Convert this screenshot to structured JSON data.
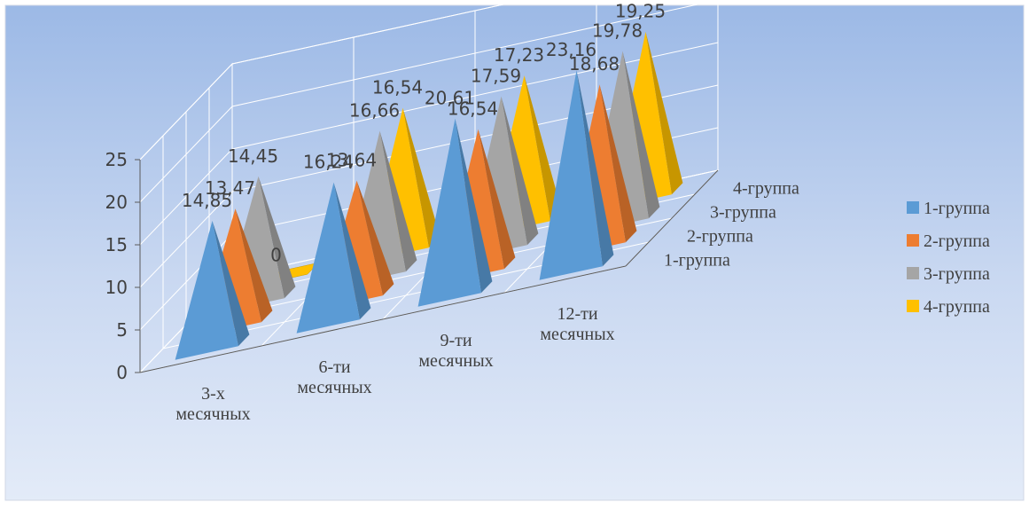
{
  "chart_data": {
    "type": "bar",
    "style": "3d-pyramid",
    "categories": [
      "3-х\nмесячных",
      "6-ти\nмесячных",
      "9-ти\nмесячных",
      "12-ти\nмесячных"
    ],
    "depth_labels": [
      "1-группа",
      "2-группа",
      "3-группа",
      "4-группа"
    ],
    "series": [
      {
        "name": "1-группа",
        "color": "#5B9BD5",
        "values": [
          14.85,
          16.24,
          20.61,
          23.16
        ]
      },
      {
        "name": "2-группа",
        "color": "#ED7D31",
        "values": [
          13.47,
          13.64,
          16.54,
          18.68
        ]
      },
      {
        "name": "3-группа",
        "color": "#A5A5A5",
        "values": [
          14.45,
          16.66,
          17.59,
          19.78
        ]
      },
      {
        "name": "4-группа",
        "color": "#FFC000",
        "values": [
          0,
          16.54,
          17.23,
          19.25
        ]
      }
    ],
    "ylim": [
      0,
      25
    ],
    "yticks": [
      "0",
      "5",
      "10",
      "15",
      "20",
      "25"
    ],
    "value_labels": {
      "s0": [
        "14,85",
        "16,24",
        "20,61",
        "23,16"
      ],
      "s1": [
        "13,47",
        "13,64",
        "16,54",
        "18,68"
      ],
      "s2": [
        "14,45",
        "16,66",
        "17,59",
        "19,78"
      ],
      "s3": [
        "0",
        "16,54",
        "17,23",
        "19,25"
      ]
    },
    "grid": true,
    "legend_position": "right",
    "title": "",
    "xlabel": "",
    "ylabel": ""
  }
}
